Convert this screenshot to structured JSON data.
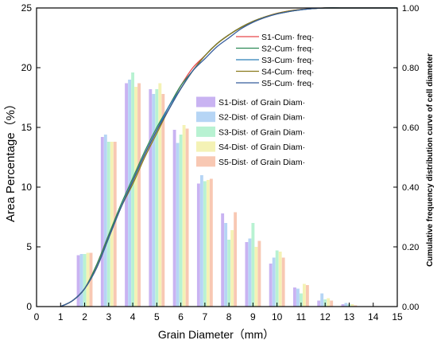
{
  "chart_data": {
    "type": "bar",
    "xlabel": "Grain Diameter（mm）",
    "ylabel": "Area Percentage（%）",
    "y2label": "Cumulative frequency distribution curve of cell diameter",
    "xlim": [
      0,
      15
    ],
    "ylim": [
      0,
      25
    ],
    "y2lim": [
      0,
      1
    ],
    "x_ticks": [
      0,
      1,
      2,
      3,
      4,
      5,
      6,
      7,
      8,
      9,
      10,
      11,
      12,
      13,
      14,
      15
    ],
    "y_ticks": [
      0,
      5,
      10,
      15,
      20,
      25
    ],
    "y2_ticks": [
      "0.00",
      "0.20",
      "0.40",
      "0.60",
      "0.80",
      "1.00"
    ],
    "y2_tick_values": [
      0,
      0.2,
      0.4,
      0.6,
      0.8,
      1.0
    ],
    "legend_position": "top-center",
    "categories": [
      2,
      3,
      4,
      5,
      6,
      7,
      8,
      9,
      10,
      11,
      12,
      13
    ],
    "series": [
      {
        "name": "S1-Dist· of Grain Diam·",
        "color": "#c9b3f2",
        "values": [
          4.3,
          14.2,
          18.7,
          18.2,
          14.8,
          10.3,
          7.8,
          5.4,
          3.6,
          1.6,
          0.5,
          0.2
        ]
      },
      {
        "name": "S2-Dist· of Grain Diam·",
        "color": "#b6d5f5",
        "values": [
          4.4,
          14.4,
          19.0,
          17.8,
          13.7,
          11.0,
          7.0,
          5.7,
          4.1,
          1.5,
          1.1,
          0.3
        ]
      },
      {
        "name": "S3-Dist· of Grain Diam·",
        "color": "#b8f2d2",
        "values": [
          4.4,
          13.8,
          19.6,
          18.2,
          14.4,
          10.5,
          5.6,
          7.0,
          4.7,
          1.1,
          0.6,
          0.2
        ]
      },
      {
        "name": "S4-Dist· of Grain Diam·",
        "color": "#f4f2b5",
        "values": [
          4.5,
          13.8,
          18.4,
          18.7,
          15.2,
          10.6,
          6.4,
          5.0,
          4.6,
          1.9,
          0.7,
          0.2
        ]
      },
      {
        "name": "S5-Dist· of Grain Diam·",
        "color": "#f8c8b3",
        "values": [
          4.5,
          13.8,
          18.7,
          17.8,
          14.9,
          10.7,
          7.9,
          5.5,
          4.1,
          1.8,
          0.5,
          0.1
        ]
      }
    ],
    "cumulative_series": [
      {
        "name": "S1-Cum· freq·",
        "color": "#e8474b",
        "x": [
          1,
          1.5,
          2,
          2.5,
          3,
          3.5,
          4,
          4.5,
          5,
          5.5,
          6,
          6.5,
          7,
          7.5,
          8,
          8.5,
          9,
          9.5,
          10,
          10.5,
          11,
          11.5,
          12,
          13,
          14,
          15
        ],
        "values": [
          0,
          0.02,
          0.06,
          0.14,
          0.24,
          0.33,
          0.42,
          0.51,
          0.59,
          0.67,
          0.74,
          0.8,
          0.84,
          0.88,
          0.91,
          0.935,
          0.955,
          0.97,
          0.982,
          0.99,
          0.995,
          0.998,
          1.0,
          1.0,
          1.0,
          1.0
        ]
      },
      {
        "name": "S2-Cum· freq·",
        "color": "#2e8b57",
        "x": [
          1,
          1.5,
          2,
          2.5,
          3,
          3.5,
          4,
          4.5,
          5,
          5.5,
          6,
          6.5,
          7,
          7.5,
          8,
          8.5,
          9,
          9.5,
          10,
          10.5,
          11,
          11.5,
          12,
          13,
          14,
          15
        ],
        "values": [
          0,
          0.02,
          0.06,
          0.14,
          0.24,
          0.34,
          0.43,
          0.52,
          0.6,
          0.67,
          0.74,
          0.79,
          0.84,
          0.88,
          0.91,
          0.935,
          0.955,
          0.97,
          0.98,
          0.988,
          0.994,
          0.998,
          1.0,
          1.0,
          1.0,
          1.0
        ]
      },
      {
        "name": "S3-Cum· freq·",
        "color": "#2b7fb8",
        "x": [
          1,
          1.5,
          2,
          2.5,
          3,
          3.5,
          4,
          4.5,
          5,
          5.5,
          6,
          6.5,
          7,
          7.5,
          8,
          8.5,
          9,
          9.5,
          10,
          10.5,
          11,
          11.5,
          12,
          13,
          14,
          15
        ],
        "values": [
          0,
          0.02,
          0.06,
          0.13,
          0.23,
          0.33,
          0.42,
          0.51,
          0.59,
          0.67,
          0.73,
          0.79,
          0.84,
          0.88,
          0.91,
          0.935,
          0.955,
          0.97,
          0.981,
          0.989,
          0.994,
          0.998,
          1.0,
          1.0,
          1.0,
          1.0
        ]
      },
      {
        "name": "S4-Cum· freq·",
        "color": "#8a7a1c",
        "x": [
          1,
          1.5,
          2,
          2.5,
          3,
          3.5,
          4,
          4.5,
          5,
          5.5,
          6,
          6.5,
          7,
          7.5,
          8,
          8.5,
          9,
          9.5,
          10,
          10.5,
          11,
          11.5,
          12,
          13,
          14,
          15
        ],
        "values": [
          0,
          0.02,
          0.06,
          0.13,
          0.23,
          0.33,
          0.41,
          0.5,
          0.58,
          0.66,
          0.73,
          0.79,
          0.84,
          0.88,
          0.91,
          0.935,
          0.955,
          0.97,
          0.982,
          0.99,
          0.995,
          0.998,
          1.0,
          1.0,
          1.0,
          1.0
        ]
      },
      {
        "name": "S5-Cum· freq·",
        "color": "#355c9c",
        "x": [
          1,
          1.5,
          2,
          2.5,
          3,
          3.5,
          4,
          4.5,
          5,
          5.5,
          6,
          6.5,
          7,
          7.5,
          8,
          8.5,
          9,
          9.5,
          10,
          10.5,
          11,
          11.5,
          12,
          13,
          14,
          15
        ],
        "values": [
          0,
          0.02,
          0.06,
          0.13,
          0.23,
          0.33,
          0.42,
          0.51,
          0.59,
          0.66,
          0.73,
          0.79,
          0.83,
          0.87,
          0.9,
          0.93,
          0.952,
          0.968,
          0.98,
          0.988,
          0.994,
          0.998,
          1.0,
          1.0,
          1.0,
          1.0
        ]
      }
    ]
  }
}
